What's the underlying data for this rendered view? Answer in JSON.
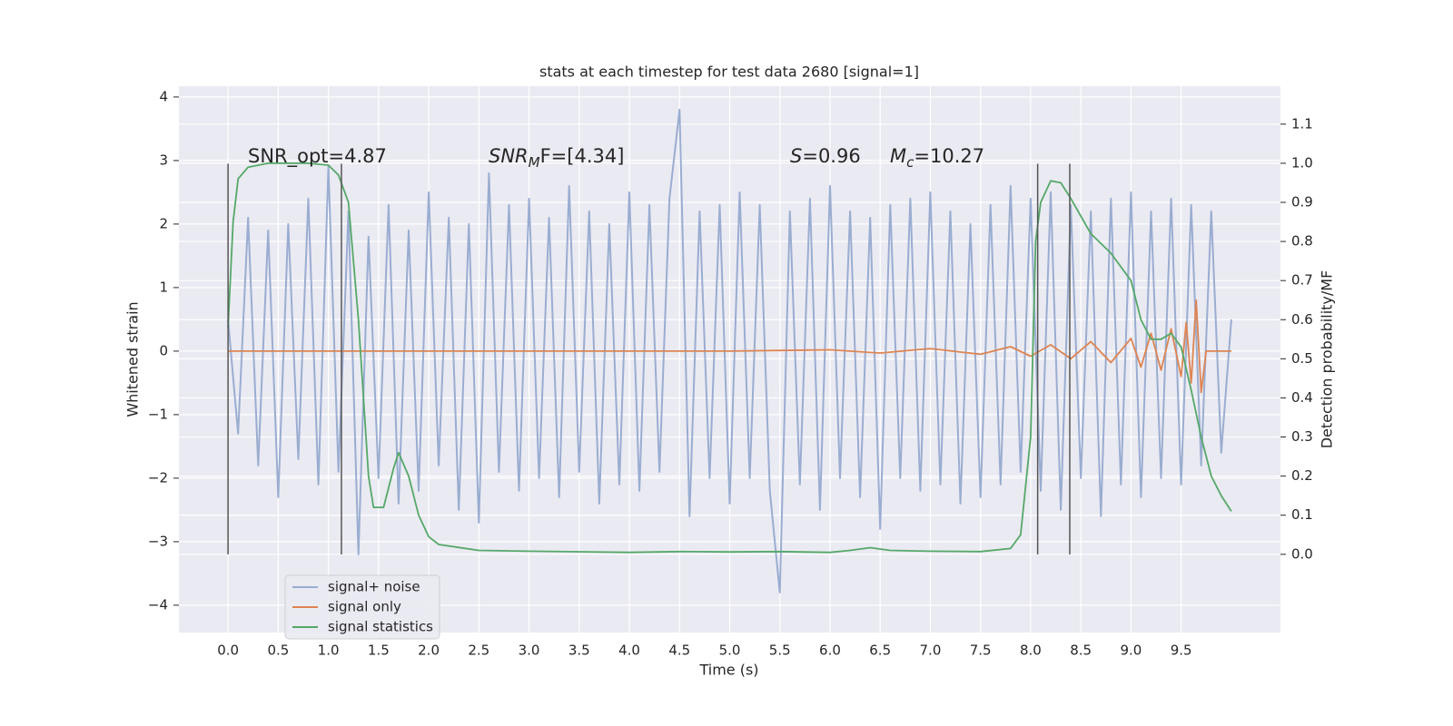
{
  "chart_data": {
    "type": "line",
    "title": "stats at each timestep for test data 2680 [signal=1]",
    "x_label": "Time (s)",
    "y_label": "Whitened strain",
    "y2_label": "Detection probability/MF",
    "xlim": [
      -0.49,
      10.49
    ],
    "ylim": [
      -4.43,
      4.17
    ],
    "y2lim": [
      -0.2,
      1.197
    ],
    "xticks": [
      {
        "value": 0,
        "label": "0.0"
      },
      0.5,
      {
        "value": 1,
        "label": "1.0"
      },
      1.5,
      {
        "value": 2,
        "label": "2.0"
      },
      2.5,
      {
        "value": 3,
        "label": "3.0"
      },
      3.5,
      {
        "value": 4,
        "label": "4.0"
      },
      4.5,
      {
        "value": 5,
        "label": "5.0"
      },
      5.5,
      {
        "value": 6,
        "label": "6.0"
      },
      6.5,
      {
        "value": 7,
        "label": "7.0"
      },
      7.5,
      {
        "value": 8,
        "label": "8.0"
      },
      8.5,
      {
        "value": 9,
        "label": "9.0"
      },
      9.5
    ],
    "yticks": [
      {
        "value": -4,
        "label": "−4"
      },
      {
        "value": -3,
        "label": "−3"
      },
      {
        "value": -2,
        "label": "−2"
      },
      {
        "value": -1,
        "label": "−1"
      },
      0,
      1,
      2,
      3,
      4
    ],
    "y2ticks": [
      {
        "value": 0,
        "label": "0.0"
      },
      0.1,
      0.2,
      0.3,
      0.4,
      0.5,
      0.6,
      0.7,
      0.8,
      0.9,
      {
        "value": 1,
        "label": "1.0"
      },
      1.1
    ],
    "grid": true,
    "legend": "lower left",
    "vlines": [
      0,
      1.13,
      8.07,
      8.39
    ],
    "vline_range": [
      -3.2,
      2.95
    ],
    "annotations": [
      {
        "text": "SNR_opt=4.87"
      },
      {
        "main": "SNR",
        "sub": "M",
        "rest": "F=[4.34]"
      },
      {
        "main": "S",
        "rest": "=0.96"
      },
      {
        "main": "M",
        "sub": "c",
        "rest": "=10.27"
      }
    ],
    "series": [
      {
        "name": "signal+ noise",
        "color": "#9aadd1",
        "x": [
          0,
          0.1,
          0.2,
          0.3,
          0.4,
          0.5,
          0.6,
          0.7,
          0.8,
          0.9,
          1,
          1.1,
          1.2,
          1.3,
          1.4,
          1.5,
          1.6,
          1.7,
          1.8,
          1.9,
          2,
          2.1,
          2.2,
          2.3,
          2.4,
          2.5,
          2.6,
          2.7,
          2.8,
          2.9,
          3,
          3.1,
          3.2,
          3.3,
          3.4,
          3.5,
          3.6,
          3.7,
          3.8,
          3.9,
          4,
          4.1,
          4.2,
          4.3,
          4.4,
          4.5,
          4.6,
          4.7,
          4.8,
          4.9,
          5,
          5.1,
          5.2,
          5.3,
          5.4,
          5.5,
          5.6,
          5.7,
          5.8,
          5.9,
          6,
          6.1,
          6.2,
          6.3,
          6.4,
          6.5,
          6.6,
          6.7,
          6.8,
          6.9,
          7,
          7.1,
          7.2,
          7.3,
          7.4,
          7.5,
          7.6,
          7.7,
          7.8,
          7.9,
          8,
          8.1,
          8.2,
          8.3,
          8.4,
          8.5,
          8.6,
          8.7,
          8.8,
          8.9,
          9,
          9.1,
          9.2,
          9.3,
          9.4,
          9.5,
          9.6,
          9.7,
          9.8,
          9.9,
          10
        ],
        "values": [
          0.5,
          -1.3,
          2.1,
          -1.8,
          1.9,
          -2.3,
          2.0,
          -1.7,
          2.4,
          -2.1,
          2.9,
          -1.9,
          2.2,
          -3.2,
          1.8,
          -2.0,
          2.3,
          -2.4,
          1.9,
          -2.2,
          2.5,
          -1.8,
          2.1,
          -2.5,
          2.0,
          -2.7,
          2.8,
          -1.9,
          2.3,
          -2.2,
          2.4,
          -2.0,
          2.1,
          -2.3,
          2.6,
          -1.9,
          2.2,
          -2.4,
          2.0,
          -2.1,
          2.5,
          -2.2,
          2.3,
          -1.9,
          2.4,
          3.8,
          -2.6,
          2.2,
          -2.0,
          2.3,
          -2.4,
          2.5,
          -2.0,
          2.3,
          -2.2,
          -3.8,
          2.2,
          -2.1,
          2.4,
          -2.5,
          2.6,
          -2.0,
          2.2,
          -2.3,
          2.1,
          -2.8,
          2.3,
          -2.0,
          2.4,
          -2.2,
          2.5,
          -2.1,
          2.2,
          -2.4,
          2.0,
          -2.3,
          2.3,
          -2.1,
          2.6,
          -1.9,
          2.4,
          -2.2,
          2.5,
          -2.5,
          2.3,
          -2.0,
          2.2,
          -2.6,
          2.4,
          -2.1,
          2.5,
          -2.3,
          2.2,
          -2.0,
          2.4,
          -2.1,
          2.3,
          -1.8,
          2.2,
          -1.6,
          0.5
        ]
      },
      {
        "name": "signal only",
        "color": "#dd8452",
        "x": [
          0,
          1,
          2,
          3,
          4,
          5,
          6,
          6.5,
          7,
          7.5,
          7.8,
          8,
          8.2,
          8.4,
          8.6,
          8.8,
          9,
          9.1,
          9.2,
          9.3,
          9.4,
          9.5,
          9.55,
          9.6,
          9.65,
          9.7,
          9.75,
          10
        ],
        "values": [
          0,
          0,
          0,
          0,
          0,
          0,
          0.02,
          -0.03,
          0.04,
          -0.05,
          0.07,
          -0.08,
          0.1,
          -0.12,
          0.15,
          -0.18,
          0.2,
          -0.25,
          0.28,
          -0.3,
          0.35,
          -0.4,
          0.45,
          -0.5,
          0.8,
          -0.65,
          0,
          0
        ]
      },
      {
        "name": "signal statistics",
        "color": "#55a868",
        "axis": "y2",
        "x": [
          0,
          0.05,
          0.1,
          0.2,
          0.4,
          0.6,
          0.8,
          1.0,
          1.1,
          1.2,
          1.3,
          1.4,
          1.45,
          1.55,
          1.65,
          1.7,
          1.8,
          1.9,
          2.0,
          2.1,
          2.5,
          3,
          4,
          4.5,
          5,
          5.5,
          6,
          6.2,
          6.4,
          6.6,
          7,
          7.5,
          7.8,
          7.9,
          8.0,
          8.05,
          8.1,
          8.2,
          8.3,
          8.4,
          8.6,
          8.8,
          9.0,
          9.1,
          9.2,
          9.3,
          9.4,
          9.5,
          9.6,
          9.7,
          9.8,
          9.9,
          10.0
        ],
        "values": [
          0.58,
          0.85,
          0.96,
          0.99,
          1.0,
          1.0,
          1.0,
          0.995,
          0.97,
          0.9,
          0.6,
          0.2,
          0.12,
          0.12,
          0.22,
          0.26,
          0.2,
          0.1,
          0.045,
          0.025,
          0.01,
          0.008,
          0.005,
          0.007,
          0.006,
          0.007,
          0.005,
          0.01,
          0.017,
          0.01,
          0.008,
          0.007,
          0.015,
          0.05,
          0.3,
          0.8,
          0.9,
          0.955,
          0.95,
          0.91,
          0.82,
          0.77,
          0.7,
          0.6,
          0.55,
          0.55,
          0.565,
          0.53,
          0.42,
          0.3,
          0.2,
          0.15,
          0.11
        ]
      }
    ]
  }
}
